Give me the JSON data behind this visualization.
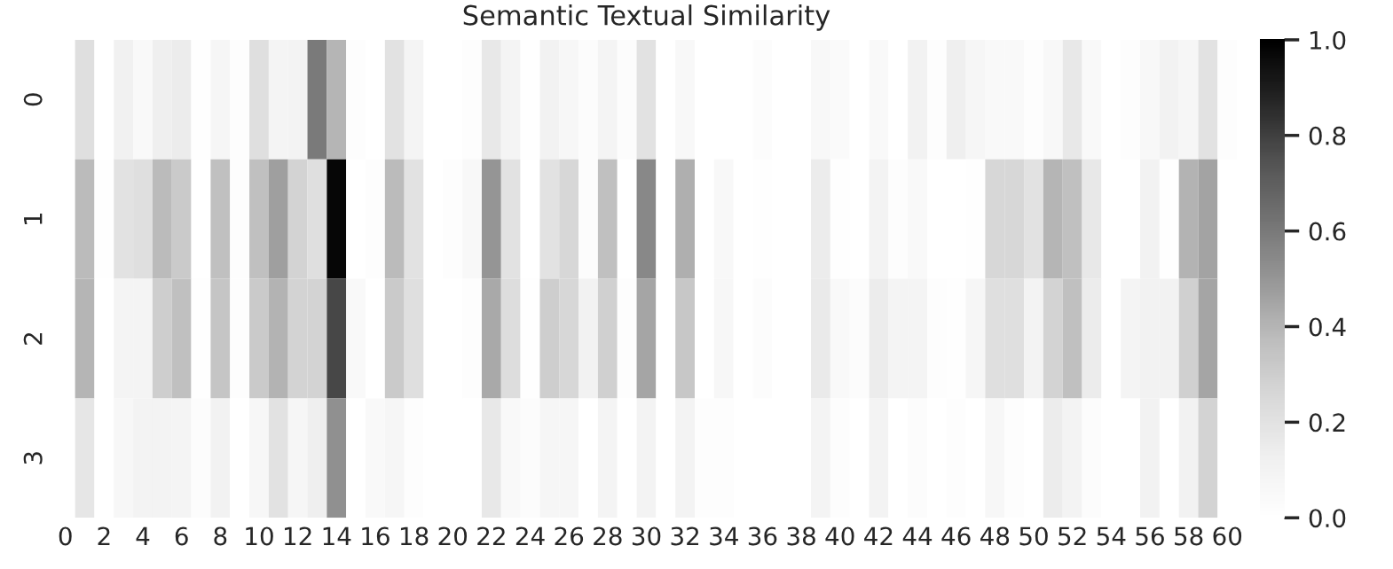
{
  "chart_data": {
    "type": "heatmap",
    "title": "Semantic Textual Similarity",
    "categories": [
      "0",
      null,
      "2",
      null,
      "4",
      null,
      "6",
      null,
      "8",
      null,
      "10",
      null,
      "12",
      null,
      "14",
      null,
      "16",
      null,
      "18",
      null,
      "20",
      null,
      "22",
      null,
      "24",
      null,
      "26",
      null,
      "28",
      null,
      "30",
      null,
      "32",
      null,
      "34",
      null,
      "36",
      null,
      "38",
      null,
      "40",
      null,
      "42",
      null,
      "44",
      null,
      "46",
      null,
      "48",
      null,
      "50",
      null,
      "52",
      null,
      "54",
      null,
      "56",
      null,
      "58",
      null,
      "60"
    ],
    "y_categories": [
      "0",
      "1",
      "2",
      "3"
    ],
    "cells": [
      [
        0,
        0.22,
        0,
        0.12,
        0.05,
        0.13,
        0.15,
        0.01,
        0.08,
        0.02,
        0.22,
        0.09,
        0.1,
        0.6,
        0.4,
        0.02,
        0,
        0.2,
        0.09,
        0,
        0,
        0.02,
        0.17,
        0.09,
        0.01,
        0.11,
        0.07,
        0.03,
        0.09,
        0.03,
        0.2,
        0,
        0.06,
        0,
        0,
        0,
        0.03,
        0,
        0,
        0.06,
        0.04,
        0,
        0.05,
        0,
        0.11,
        0.02,
        0.13,
        0.08,
        0.05,
        0.05,
        0.02,
        0.06,
        0.17,
        0.05,
        0,
        0.02,
        0.06,
        0.11,
        0.08,
        0.2,
        0.02
      ],
      [
        0,
        0.38,
        0.01,
        0.2,
        0.22,
        0.38,
        0.32,
        0,
        0.36,
        0.02,
        0.36,
        0.47,
        0.28,
        0.22,
        0.98,
        0,
        0.02,
        0.38,
        0.2,
        0,
        0.02,
        0.06,
        0.5,
        0.2,
        0,
        0.2,
        0.26,
        0.03,
        0.36,
        0,
        0.55,
        0,
        0.42,
        0,
        0.06,
        0,
        0.01,
        0,
        0,
        0.15,
        0.01,
        0,
        0.1,
        0.02,
        0.05,
        0,
        0,
        0.01,
        0.26,
        0.26,
        0.2,
        0.4,
        0.36,
        0.17,
        0,
        0,
        0.11,
        0.01,
        0.41,
        0.46,
        0
      ],
      [
        0,
        0.4,
        0,
        0.09,
        0.09,
        0.3,
        0.36,
        0.01,
        0.34,
        0.02,
        0.32,
        0.41,
        0.28,
        0.28,
        0.78,
        0.05,
        0,
        0.32,
        0.22,
        0,
        0,
        0.02,
        0.44,
        0.23,
        0.01,
        0.3,
        0.26,
        0.11,
        0.29,
        0.02,
        0.45,
        0,
        0.33,
        0,
        0.07,
        0,
        0.03,
        0,
        0,
        0.16,
        0.05,
        0.03,
        0.15,
        0.09,
        0.09,
        0.02,
        0.01,
        0.08,
        0.22,
        0.22,
        0.1,
        0.28,
        0.36,
        0.15,
        0,
        0.09,
        0.11,
        0.11,
        0.29,
        0.45,
        0
      ],
      [
        0,
        0.18,
        0,
        0.07,
        0.1,
        0.1,
        0.09,
        0.03,
        0.11,
        0,
        0.07,
        0.2,
        0.08,
        0.13,
        0.52,
        0,
        0.05,
        0.08,
        0.02,
        0,
        0,
        0,
        0.17,
        0.05,
        0.03,
        0.08,
        0.08,
        0,
        0.09,
        0,
        0.1,
        0,
        0.1,
        0.02,
        0.02,
        0,
        0,
        0,
        0,
        0.09,
        0.02,
        0,
        0.1,
        0,
        0.03,
        0,
        0.02,
        0,
        0.07,
        0.02,
        0,
        0.15,
        0.1,
        0.03,
        0,
        0,
        0.11,
        0,
        0.11,
        0.28,
        0
      ]
    ],
    "clim": [
      0,
      1
    ],
    "cticks": [
      {
        "value": 0,
        "label": "0.0"
      },
      {
        "value": 0.2,
        "label": "0.2"
      },
      {
        "value": 0.4,
        "label": "0.4"
      },
      {
        "value": 0.6,
        "label": "0.6"
      },
      {
        "value": 0.8,
        "label": "0.8"
      },
      {
        "value": 1,
        "label": "1.0"
      }
    ]
  }
}
